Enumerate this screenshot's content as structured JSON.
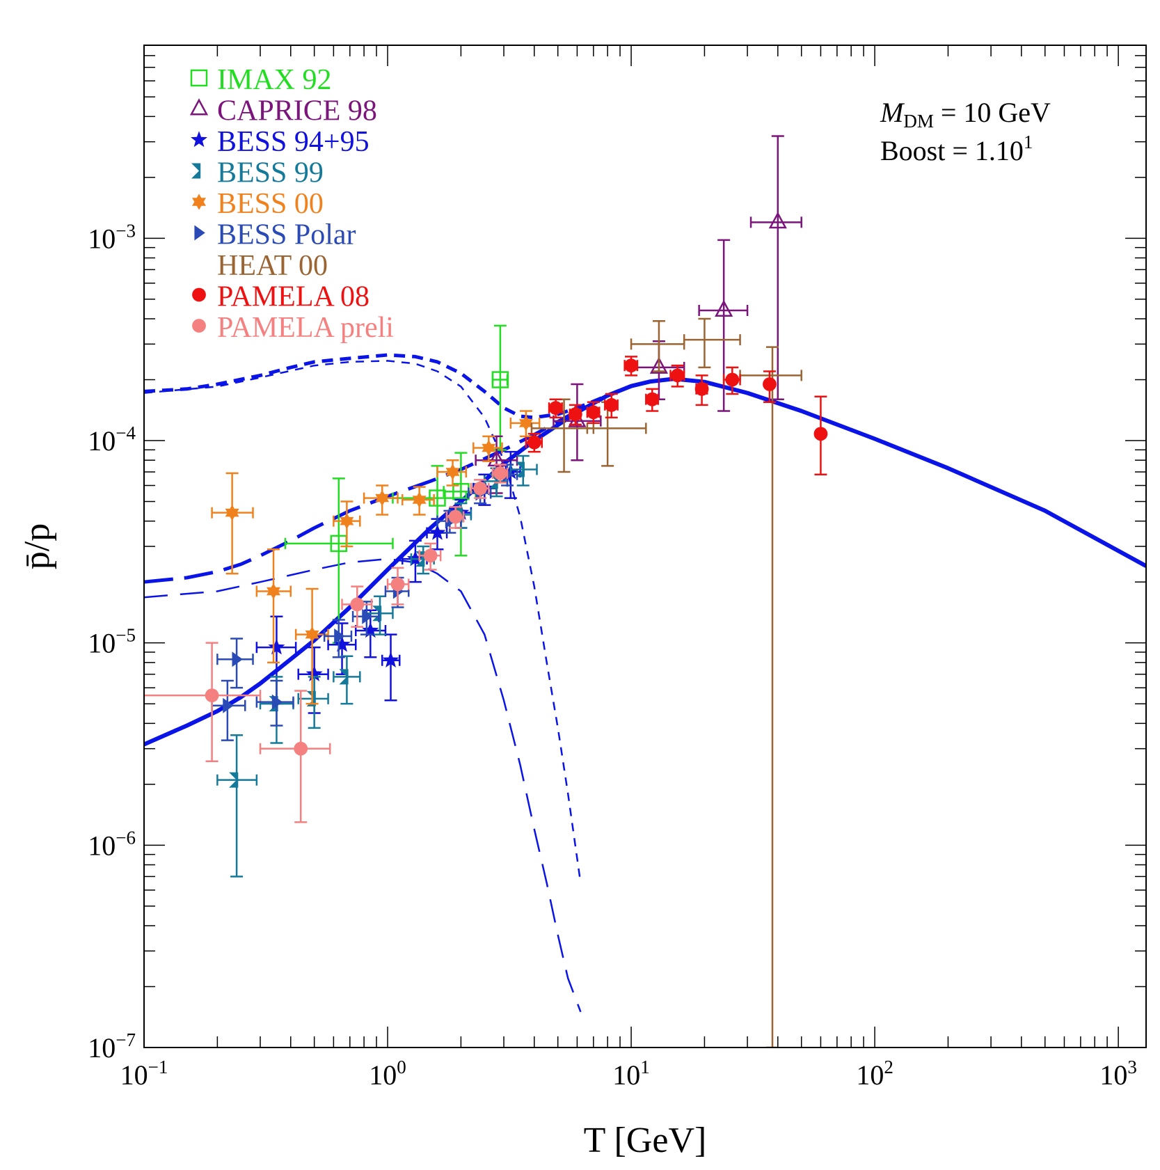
{
  "chart_data": {
    "type": "scatter",
    "title": "",
    "xlabel": "T [GeV]",
    "ylabel": "p̄/p",
    "xscale": "log",
    "yscale": "log",
    "xlim": [
      0.1,
      1300
    ],
    "ylim": [
      1e-07,
      0.009
    ],
    "x_ticks": [
      {
        "value": 0.1,
        "base": "10",
        "exp": "−1"
      },
      {
        "value": 1,
        "base": "10",
        "exp": "0"
      },
      {
        "value": 10,
        "base": "10",
        "exp": "1"
      },
      {
        "value": 100,
        "base": "10",
        "exp": "2"
      },
      {
        "value": 1000,
        "base": "10",
        "exp": "3"
      }
    ],
    "y_ticks": [
      {
        "value": 1e-07,
        "base": "10",
        "exp": "−7"
      },
      {
        "value": 1e-06,
        "base": "10",
        "exp": "−6"
      },
      {
        "value": 1e-05,
        "base": "10",
        "exp": "−5"
      },
      {
        "value": 0.0001,
        "base": "10",
        "exp": "−4"
      },
      {
        "value": 0.001,
        "base": "10",
        "exp": "−3"
      }
    ],
    "annotation": {
      "line1_var": "M",
      "line1_sub": "DM",
      "line1_rest": " = 10 GeV",
      "line2_base": "Boost = 1.10",
      "line2_exp": "1"
    },
    "legend_position": "top-left",
    "series": [
      {
        "name": "IMAX 92",
        "color": "#22dd22",
        "marker": "open-square",
        "points": [
          {
            "x": 0.63,
            "y": 3.1e-05,
            "xlo": 0.38,
            "xhi": 1.05,
            "ylo": 1e-05,
            "yhi": 6.5e-05
          },
          {
            "x": 1.6,
            "y": 5.2e-05,
            "xlo": 1.05,
            "xhi": 2.1,
            "ylo": 3.5e-05,
            "yhi": 7.5e-05
          },
          {
            "x": 2.0,
            "y": 5.6e-05,
            "xlo": 1.7,
            "xhi": 2.3,
            "ylo": 2.7e-05,
            "yhi": 8.7e-05
          },
          {
            "x": 2.9,
            "y": 0.0002,
            "xlo": 2.7,
            "xhi": 3.1,
            "ylo": 9e-05,
            "yhi": 0.00037
          }
        ]
      },
      {
        "name": "CAPRICE 98",
        "color": "#7b147b",
        "marker": "open-triangle",
        "points": [
          {
            "x": 2.8,
            "y": 8e-05,
            "xlo": 2.3,
            "xhi": 3.4,
            "ylo": 5.5e-05,
            "yhi": 0.000105
          },
          {
            "x": 6.0,
            "y": 0.000125,
            "xlo": 4.8,
            "xhi": 7.5,
            "ylo": 8e-05,
            "yhi": 0.00019
          },
          {
            "x": 13.0,
            "y": 0.00023,
            "xlo": 10.0,
            "xhi": 16.5,
            "ylo": 0.00016,
            "yhi": 0.00031
          },
          {
            "x": 24.0,
            "y": 0.00044,
            "xlo": 19.0,
            "xhi": 30.0,
            "ylo": 0.00014,
            "yhi": 0.00098
          },
          {
            "x": 40.0,
            "y": 0.0012,
            "xlo": 31.0,
            "xhi": 50.0,
            "ylo": 0.00016,
            "yhi": 0.0032
          }
        ]
      },
      {
        "name": "BESS 94+95",
        "color": "#1111dd",
        "marker": "star",
        "points": [
          {
            "x": 0.35,
            "y": 9.5e-06,
            "xlo": 0.29,
            "xhi": 0.42,
            "ylo": 5e-06,
            "yhi": 1.35e-05
          },
          {
            "x": 0.5,
            "y": 7e-06,
            "xlo": 0.43,
            "xhi": 0.57,
            "ylo": 4.5e-06,
            "yhi": 9.5e-06
          },
          {
            "x": 0.65,
            "y": 9.8e-06,
            "xlo": 0.57,
            "xhi": 0.74,
            "ylo": 7e-06,
            "yhi": 1.25e-05
          },
          {
            "x": 0.85,
            "y": 1.15e-05,
            "xlo": 0.74,
            "xhi": 0.98,
            "ylo": 8.5e-06,
            "yhi": 1.45e-05
          },
          {
            "x": 1.03,
            "y": 8.2e-06,
            "xlo": 0.95,
            "xhi": 1.12,
            "ylo": 5.2e-06,
            "yhi": 1.1e-05
          },
          {
            "x": 1.3,
            "y": 2.6e-05,
            "xlo": 1.15,
            "xhi": 1.45,
            "ylo": 2e-05,
            "yhi": 3.2e-05
          },
          {
            "x": 1.6,
            "y": 3.5e-05,
            "xlo": 1.45,
            "xhi": 1.75,
            "ylo": 2.9e-05,
            "yhi": 4.1e-05
          },
          {
            "x": 2.0,
            "y": 4.4e-05,
            "xlo": 1.8,
            "xhi": 2.2,
            "ylo": 3.7e-05,
            "yhi": 5.1e-05
          },
          {
            "x": 2.5,
            "y": 5.8e-05,
            "xlo": 2.25,
            "xhi": 2.8,
            "ylo": 4.8e-05,
            "yhi": 6.8e-05
          },
          {
            "x": 3.2,
            "y": 7e-05,
            "xlo": 2.9,
            "xhi": 3.5,
            "ylo": 5.2e-05,
            "yhi": 8.8e-05
          }
        ]
      },
      {
        "name": "BESS 99",
        "color": "#157a9a",
        "marker": "bowtie",
        "points": [
          {
            "x": 0.24,
            "y": 2.1e-06,
            "xlo": 0.2,
            "xhi": 0.29,
            "ylo": 7e-07,
            "yhi": 3.5e-06
          },
          {
            "x": 0.35,
            "y": 5e-06,
            "xlo": 0.3,
            "xhi": 0.41,
            "ylo": 3.2e-06,
            "yhi": 6.8e-06
          },
          {
            "x": 0.5,
            "y": 5.3e-06,
            "xlo": 0.43,
            "xhi": 0.57,
            "ylo": 3.8e-06,
            "yhi": 6.8e-06
          },
          {
            "x": 0.68,
            "y": 6.8e-06,
            "xlo": 0.6,
            "xhi": 0.77,
            "ylo": 5e-06,
            "yhi": 8.6e-06
          },
          {
            "x": 0.93,
            "y": 1.4e-05,
            "xlo": 0.82,
            "xhi": 1.05,
            "ylo": 1.1e-05,
            "yhi": 1.7e-05
          },
          {
            "x": 1.4,
            "y": 2.6e-05,
            "xlo": 1.25,
            "xhi": 1.55,
            "ylo": 2.2e-05,
            "yhi": 3e-05
          },
          {
            "x": 2.0,
            "y": 4.3e-05,
            "xlo": 1.8,
            "xhi": 2.2,
            "ylo": 3.7e-05,
            "yhi": 4.9e-05
          },
          {
            "x": 2.8,
            "y": 6.3e-05,
            "xlo": 2.5,
            "xhi": 3.1,
            "ylo": 5.3e-05,
            "yhi": 7.3e-05
          },
          {
            "x": 3.6,
            "y": 7.2e-05,
            "xlo": 3.2,
            "xhi": 4.1,
            "ylo": 6e-05,
            "yhi": 8.4e-05
          }
        ]
      },
      {
        "name": "BESS 00",
        "color": "#f0821e",
        "marker": "star6",
        "points": [
          {
            "x": 0.23,
            "y": 4.4e-05,
            "xlo": 0.19,
            "xhi": 0.28,
            "ylo": 2.2e-05,
            "yhi": 6.9e-05
          },
          {
            "x": 0.34,
            "y": 1.8e-05,
            "xlo": 0.29,
            "xhi": 0.4,
            "ylo": 8e-06,
            "yhi": 2.9e-05
          },
          {
            "x": 0.49,
            "y": 1.1e-05,
            "xlo": 0.42,
            "xhi": 0.57,
            "ylo": 5e-06,
            "yhi": 1.85e-05
          },
          {
            "x": 0.68,
            "y": 4e-05,
            "xlo": 0.6,
            "xhi": 0.77,
            "ylo": 3e-05,
            "yhi": 5e-05
          },
          {
            "x": 0.95,
            "y": 5.2e-05,
            "xlo": 0.8,
            "xhi": 1.1,
            "ylo": 4.3e-05,
            "yhi": 6e-05
          },
          {
            "x": 1.35,
            "y": 5.1e-05,
            "xlo": 1.15,
            "xhi": 1.55,
            "ylo": 4.3e-05,
            "yhi": 5.9e-05
          },
          {
            "x": 1.85,
            "y": 7e-05,
            "xlo": 1.6,
            "xhi": 2.1,
            "ylo": 6e-05,
            "yhi": 8e-05
          },
          {
            "x": 2.6,
            "y": 9.2e-05,
            "xlo": 2.25,
            "xhi": 2.95,
            "ylo": 7.9e-05,
            "yhi": 0.000105
          },
          {
            "x": 3.7,
            "y": 0.000122,
            "xlo": 3.2,
            "xhi": 4.2,
            "ylo": 0.000105,
            "yhi": 0.00014
          }
        ]
      },
      {
        "name": "BESS Polar",
        "color": "#2a4ab5",
        "marker": "triangle-right",
        "points": [
          {
            "x": 0.22,
            "y": 4.9e-06,
            "xlo": 0.19,
            "xhi": 0.26,
            "ylo": 3.3e-06,
            "yhi": 6.5e-06
          },
          {
            "x": 0.24,
            "y": 8.3e-06,
            "xlo": 0.2,
            "xhi": 0.28,
            "ylo": 6e-06,
            "yhi": 1.05e-05
          },
          {
            "x": 0.35,
            "y": 5.1e-06,
            "xlo": 0.29,
            "xhi": 0.41,
            "ylo": 3.9e-06,
            "yhi": 6.5e-06
          },
          {
            "x": 0.63,
            "y": 1.08e-05,
            "xlo": 0.55,
            "xhi": 0.71,
            "ylo": 8.5e-06,
            "yhi": 1.3e-05
          },
          {
            "x": 0.82,
            "y": 1.35e-05,
            "xlo": 0.72,
            "xhi": 0.92,
            "ylo": 1.1e-05,
            "yhi": 1.6e-05
          },
          {
            "x": 1.1,
            "y": 1.8e-05,
            "xlo": 0.98,
            "xhi": 1.22,
            "ylo": 1.5e-05,
            "yhi": 2.1e-05
          },
          {
            "x": 1.8,
            "y": 4e-05,
            "xlo": 1.6,
            "xhi": 2.0,
            "ylo": 3.5e-05,
            "yhi": 4.5e-05
          },
          {
            "x": 2.4,
            "y": 5.5e-05,
            "xlo": 2.15,
            "xhi": 2.65,
            "ylo": 4.9e-05,
            "yhi": 6.1e-05
          },
          {
            "x": 3.1,
            "y": 6.8e-05,
            "xlo": 2.8,
            "xhi": 3.4,
            "ylo": 6e-05,
            "yhi": 7.6e-05
          }
        ]
      },
      {
        "name": "HEAT 00",
        "color": "#9b6433",
        "marker": "none",
        "points": [
          {
            "x": 5.3,
            "y": 0.000115,
            "xlo": 3.9,
            "xhi": 7.0,
            "ylo": 7e-05,
            "yhi": 0.00016
          },
          {
            "x": 8.0,
            "y": 0.000115,
            "xlo": 6.6,
            "xhi": 11.5,
            "ylo": 7.5e-05,
            "yhi": 0.000155
          },
          {
            "x": 13.0,
            "y": 0.0003,
            "xlo": 10.0,
            "xhi": 16.5,
            "ylo": 0.00022,
            "yhi": 0.00039
          },
          {
            "x": 20.0,
            "y": 0.000315,
            "xlo": 16.5,
            "xhi": 28.0,
            "ylo": 0.00023,
            "yhi": 0.0004
          },
          {
            "x": 38.0,
            "y": 0.00021,
            "xlo": 28.0,
            "xhi": 50.0,
            "ylo": 1e-07,
            "yhi": 0.00029
          }
        ]
      },
      {
        "name": "PAMELA 08",
        "color": "#ee1111",
        "marker": "filled-circle",
        "points": [
          {
            "x": 4.0,
            "y": 9.8e-05,
            "xlo": 3.7,
            "xhi": 4.3,
            "ylo": 8.8e-05,
            "yhi": 0.000108
          },
          {
            "x": 4.9,
            "y": 0.000145,
            "xlo": 4.6,
            "xhi": 5.2,
            "ylo": 0.00013,
            "yhi": 0.00016
          },
          {
            "x": 5.9,
            "y": 0.000135,
            "xlo": 5.6,
            "xhi": 6.2,
            "ylo": 0.00012,
            "yhi": 0.00015
          },
          {
            "x": 7.0,
            "y": 0.000138,
            "xlo": 6.6,
            "xhi": 7.4,
            "ylo": 0.000122,
            "yhi": 0.000155
          },
          {
            "x": 8.3,
            "y": 0.00015,
            "xlo": 7.8,
            "xhi": 8.8,
            "ylo": 0.00013,
            "yhi": 0.00017
          },
          {
            "x": 10.0,
            "y": 0.000235,
            "xlo": 9.4,
            "xhi": 10.6,
            "ylo": 0.00021,
            "yhi": 0.00026
          },
          {
            "x": 12.2,
            "y": 0.00016,
            "xlo": 11.5,
            "xhi": 12.9,
            "ylo": 0.00014,
            "yhi": 0.00018
          },
          {
            "x": 15.5,
            "y": 0.00021,
            "xlo": 14.5,
            "xhi": 16.5,
            "ylo": 0.000185,
            "yhi": 0.000235
          },
          {
            "x": 19.5,
            "y": 0.00018,
            "xlo": 18.5,
            "xhi": 20.5,
            "ylo": 0.00015,
            "yhi": 0.00021
          },
          {
            "x": 26.0,
            "y": 0.0002,
            "xlo": 24.0,
            "xhi": 28.0,
            "ylo": 0.00017,
            "yhi": 0.00023
          },
          {
            "x": 37.0,
            "y": 0.00019,
            "xlo": 37.0,
            "xhi": 37.0,
            "ylo": 0.000155,
            "yhi": 0.00022
          },
          {
            "x": 60.0,
            "y": 0.000108,
            "xlo": 60.0,
            "xhi": 60.0,
            "ylo": 6.8e-05,
            "yhi": 0.000165
          }
        ]
      },
      {
        "name": "PAMELA preli",
        "color": "#f58080",
        "marker": "filled-circle",
        "points": [
          {
            "x": 0.19,
            "y": 5.5e-06,
            "xlo": 0.1,
            "xhi": 0.3,
            "ylo": 2.6e-06,
            "yhi": 1e-05
          },
          {
            "x": 0.44,
            "y": 3e-06,
            "xlo": 0.3,
            "xhi": 0.58,
            "ylo": 1.3e-06,
            "yhi": 5.8e-06
          },
          {
            "x": 0.75,
            "y": 1.55e-05,
            "xlo": 0.65,
            "xhi": 0.86,
            "ylo": 1.2e-05,
            "yhi": 1.9e-05
          },
          {
            "x": 1.1,
            "y": 1.95e-05,
            "xlo": 1.0,
            "xhi": 1.22,
            "ylo": 1.55e-05,
            "yhi": 2.35e-05
          },
          {
            "x": 1.5,
            "y": 2.7e-05,
            "xlo": 1.35,
            "xhi": 1.65,
            "ylo": 2.3e-05,
            "yhi": 3.1e-05
          },
          {
            "x": 1.9,
            "y": 4.2e-05,
            "xlo": 1.75,
            "xhi": 2.05,
            "ylo": 3.7e-05,
            "yhi": 4.7e-05
          },
          {
            "x": 2.4,
            "y": 5.8e-05,
            "xlo": 2.2,
            "xhi": 2.6,
            "ylo": 5.2e-05,
            "yhi": 6.4e-05
          },
          {
            "x": 2.9,
            "y": 6.9e-05,
            "xlo": 2.7,
            "xhi": 3.1,
            "ylo": 6.2e-05,
            "yhi": 7.6e-05
          }
        ]
      }
    ],
    "curves": [
      {
        "name": "background",
        "style": "solid-thick",
        "color": "#0a14e6",
        "x": [
          0.1,
          0.15,
          0.2,
          0.25,
          0.3,
          0.4,
          0.5,
          0.7,
          1.0,
          1.5,
          2.0,
          3.0,
          4.0,
          6.0,
          8.0,
          10,
          12,
          15,
          20,
          30,
          50,
          100,
          200,
          500,
          1300
        ],
        "y": [
          3.15e-06,
          3.9e-06,
          4.6e-06,
          5.4e-06,
          6.3e-06,
          8.3e-06,
          1.03e-05,
          1.5e-05,
          2.3e-05,
          3.7e-05,
          5e-05,
          7.7e-05,
          0.0001,
          0.000138,
          0.000167,
          0.000186,
          0.000196,
          0.000202,
          0.000195,
          0.000172,
          0.00014,
          0.000102,
          7.3e-05,
          4.5e-05,
          2.4e-05
        ]
      },
      {
        "name": "total-short-dash",
        "style": "short-dash-thick",
        "color": "#0a14e6",
        "x": [
          0.1,
          0.15,
          0.2,
          0.3,
          0.4,
          0.5,
          0.7,
          1.0,
          1.3,
          1.6,
          2.0,
          2.5,
          3.0,
          3.5,
          4.0,
          5.0,
          6.0,
          8.0,
          10,
          13
        ],
        "y": [
          0.000175,
          0.00018,
          0.00019,
          0.00021,
          0.00023,
          0.000245,
          0.000255,
          0.000265,
          0.00026,
          0.000245,
          0.000215,
          0.000175,
          0.000145,
          0.000132,
          0.00013,
          0.000135,
          0.000145,
          0.000167,
          0.000186,
          0.0002
        ]
      },
      {
        "name": "signal-short-dash",
        "style": "short-dash-thin",
        "color": "#0a14e6",
        "x": [
          0.1,
          0.2,
          0.3,
          0.5,
          0.7,
          1.0,
          1.3,
          1.6,
          2.0,
          2.5,
          3.0,
          3.5,
          4.0,
          4.5,
          5.0,
          5.5,
          6.2
        ],
        "y": [
          0.000172,
          0.000185,
          0.000205,
          0.000235,
          0.000245,
          0.000248,
          0.00024,
          0.00022,
          0.000185,
          0.00013,
          8e-05,
          4.2e-05,
          1.9e-05,
          8e-06,
          3.8e-06,
          1.8e-06,
          6.5e-07
        ]
      },
      {
        "name": "total-long-dash",
        "style": "long-dash-thick",
        "color": "#0a14e6",
        "x": [
          0.1,
          0.15,
          0.2,
          0.25,
          0.3,
          0.4,
          0.5,
          0.7,
          1.0,
          1.5,
          2.0,
          3.0,
          4.0,
          6.0,
          8.0
        ],
        "y": [
          2e-05,
          2.1e-05,
          2.25e-05,
          2.45e-05,
          2.7e-05,
          3.2e-05,
          3.7e-05,
          4.5e-05,
          5.3e-05,
          6.3e-05,
          7.2e-05,
          9e-05,
          0.000107,
          0.00014,
          0.000167
        ]
      },
      {
        "name": "signal-long-dash",
        "style": "long-dash-thin",
        "color": "#0a14e6",
        "x": [
          0.1,
          0.2,
          0.3,
          0.5,
          0.7,
          1.0,
          1.3,
          1.6,
          2.0,
          2.5,
          3.0,
          3.5,
          4.0,
          4.5,
          5.0,
          5.5,
          6.2
        ],
        "y": [
          1.68e-05,
          1.8e-05,
          2e-05,
          2.3e-05,
          2.5e-05,
          2.6e-05,
          2.5e-05,
          2.2e-05,
          1.8e-05,
          1.1e-05,
          5.2e-06,
          2.5e-06,
          1.2e-06,
          6.5e-07,
          3.6e-07,
          2.2e-07,
          1.5e-07
        ]
      }
    ]
  }
}
